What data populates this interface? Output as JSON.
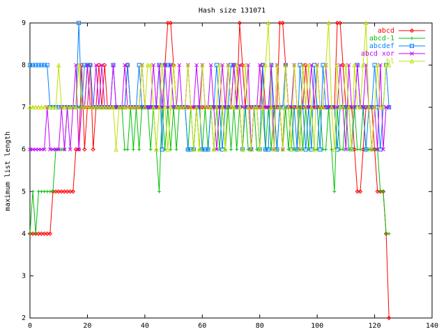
{
  "chart_data": {
    "type": "line",
    "title": "Hash size 131071",
    "xlabel": "",
    "ylabel": "maximum list length",
    "xlim": [
      0,
      140
    ],
    "ylim": [
      2,
      9
    ],
    "xticks": [
      0,
      20,
      40,
      60,
      80,
      100,
      120,
      140
    ],
    "yticks": [
      2,
      3,
      4,
      5,
      6,
      7,
      8,
      9
    ],
    "grid": false,
    "legend_position": "top-right",
    "series": [
      {
        "name": "abcd",
        "color": "#ff0000",
        "marker": "diamond",
        "x": [
          0,
          1,
          2,
          3,
          4,
          5,
          6,
          7,
          8,
          9,
          10,
          11,
          12,
          13,
          14,
          15,
          16,
          17,
          18,
          19,
          20,
          21,
          22,
          23,
          24,
          25,
          26,
          27,
          28,
          29,
          30,
          31,
          32,
          33,
          34,
          35,
          36,
          37,
          38,
          39,
          40,
          41,
          42,
          43,
          44,
          45,
          46,
          47,
          48,
          49,
          50,
          51,
          52,
          53,
          54,
          55,
          56,
          57,
          58,
          59,
          60,
          61,
          62,
          63,
          64,
          65,
          66,
          67,
          68,
          69,
          70,
          71,
          72,
          73,
          74,
          75,
          76,
          77,
          78,
          79,
          80,
          81,
          82,
          83,
          84,
          85,
          86,
          87,
          88,
          89,
          90,
          91,
          92,
          93,
          94,
          95,
          96,
          97,
          98,
          99,
          100,
          101,
          102,
          103,
          104,
          105,
          106,
          107,
          108,
          109,
          110,
          111,
          112,
          113,
          114,
          115,
          116,
          117,
          118,
          119,
          120,
          121,
          122,
          123,
          124,
          125
        ],
        "values": [
          4,
          4,
          4,
          4,
          4,
          4,
          4,
          4,
          5,
          5,
          5,
          5,
          5,
          5,
          5,
          5,
          6,
          6,
          8,
          6,
          7,
          8,
          6,
          7,
          8,
          7,
          8,
          7,
          7,
          7,
          7,
          7,
          7,
          7,
          8,
          7,
          7,
          7,
          7,
          7,
          7,
          7,
          7,
          7,
          7,
          7,
          7,
          8,
          9,
          9,
          8,
          7,
          7,
          7,
          7,
          7,
          7,
          7,
          7,
          7,
          7,
          7,
          7,
          7,
          7,
          7,
          7,
          7,
          7,
          7,
          7,
          8,
          7,
          9,
          8,
          7,
          7,
          7,
          7,
          7,
          7,
          8,
          7,
          7,
          7,
          7,
          7,
          9,
          9,
          8,
          7,
          7,
          7,
          7,
          7,
          7,
          8,
          7,
          7,
          7,
          7,
          7,
          7,
          7,
          7,
          7,
          7,
          9,
          9,
          8,
          7,
          7,
          7,
          6,
          5,
          5,
          6,
          7,
          7,
          7,
          6,
          5,
          5,
          5,
          4,
          2
        ]
      },
      {
        "name": "abcd-1",
        "color": "#00c000",
        "marker": "plus",
        "x": [
          0,
          1,
          2,
          3,
          4,
          5,
          6,
          7,
          8,
          9,
          10,
          11,
          12,
          13,
          14,
          15,
          16,
          17,
          18,
          19,
          20,
          21,
          22,
          23,
          24,
          25,
          26,
          27,
          28,
          29,
          30,
          31,
          32,
          33,
          34,
          35,
          36,
          37,
          38,
          39,
          40,
          41,
          42,
          43,
          44,
          45,
          46,
          47,
          48,
          49,
          50,
          51,
          52,
          53,
          54,
          55,
          56,
          57,
          58,
          59,
          60,
          61,
          62,
          63,
          64,
          65,
          66,
          67,
          68,
          69,
          70,
          71,
          72,
          73,
          74,
          75,
          76,
          77,
          78,
          79,
          80,
          81,
          82,
          83,
          84,
          85,
          86,
          87,
          88,
          89,
          90,
          91,
          92,
          93,
          94,
          95,
          96,
          97,
          98,
          99,
          100,
          101,
          102,
          103,
          104,
          105,
          106,
          107,
          108,
          109,
          110,
          111,
          112,
          113,
          114,
          115,
          116,
          117,
          118,
          119,
          120,
          121,
          122,
          123,
          124,
          125
        ],
        "values": [
          4,
          5,
          4,
          5,
          5,
          5,
          5,
          5,
          5,
          6,
          6,
          6,
          6,
          7,
          7,
          7,
          7,
          7,
          7,
          7,
          8,
          7,
          7,
          7,
          7,
          7,
          7,
          7,
          7,
          7,
          7,
          7,
          7,
          6,
          6,
          7,
          6,
          7,
          6,
          7,
          7,
          7,
          6,
          7,
          6,
          5,
          7,
          6,
          7,
          6,
          7,
          6,
          7,
          7,
          7,
          6,
          7,
          6,
          7,
          6,
          6,
          7,
          6,
          7,
          6,
          7,
          6,
          7,
          6,
          7,
          6,
          7,
          6,
          7,
          6,
          7,
          6,
          6,
          7,
          6,
          6,
          7,
          6,
          7,
          6,
          7,
          6,
          7,
          6,
          7,
          6,
          7,
          6,
          6,
          7,
          6,
          7,
          6,
          7,
          6,
          6,
          7,
          6,
          6,
          7,
          6,
          5,
          7,
          6,
          6,
          7,
          6,
          6,
          7,
          6,
          6,
          7,
          6,
          6,
          6,
          6,
          6,
          5,
          5,
          4,
          4
        ]
      },
      {
        "name": "abcdef",
        "color": "#0080ff",
        "marker": "square",
        "x": [
          0,
          1,
          2,
          3,
          4,
          5,
          6,
          7,
          8,
          9,
          10,
          11,
          12,
          13,
          14,
          15,
          16,
          17,
          18,
          19,
          20,
          21,
          22,
          23,
          24,
          25,
          26,
          27,
          28,
          29,
          30,
          31,
          32,
          33,
          34,
          35,
          36,
          37,
          38,
          39,
          40,
          41,
          42,
          43,
          44,
          45,
          46,
          47,
          48,
          49,
          50,
          51,
          52,
          53,
          54,
          55,
          56,
          57,
          58,
          59,
          60,
          61,
          62,
          63,
          64,
          65,
          66,
          67,
          68,
          69,
          70,
          71,
          72,
          73,
          74,
          75,
          76,
          77,
          78,
          79,
          80,
          81,
          82,
          83,
          84,
          85,
          86,
          87,
          88,
          89,
          90,
          91,
          92,
          93,
          94,
          95,
          96,
          97,
          98,
          99,
          100,
          101,
          102,
          103,
          104,
          105,
          106,
          107,
          108,
          109,
          110,
          111,
          112,
          113,
          114,
          115,
          116,
          117,
          118,
          119,
          120,
          121,
          122,
          123,
          124,
          125
        ],
        "values": [
          8,
          8,
          8,
          8,
          8,
          8,
          8,
          7,
          7,
          7,
          7,
          7,
          7,
          7,
          7,
          7,
          7,
          9,
          7,
          8,
          8,
          8,
          7,
          7,
          7,
          7,
          7,
          7,
          7,
          8,
          7,
          7,
          7,
          7,
          8,
          7,
          7,
          7,
          8,
          7,
          7,
          7,
          7,
          7,
          7,
          8,
          6,
          8,
          8,
          8,
          7,
          7,
          7,
          7,
          7,
          6,
          6,
          6,
          7,
          7,
          6,
          6,
          6,
          7,
          7,
          8,
          7,
          6,
          7,
          7,
          8,
          8,
          7,
          7,
          6,
          7,
          7,
          6,
          7,
          7,
          6,
          8,
          6,
          6,
          8,
          7,
          6,
          7,
          7,
          8,
          7,
          6,
          7,
          6,
          8,
          7,
          6,
          7,
          6,
          8,
          7,
          6,
          8,
          7,
          7,
          7,
          7,
          6,
          7,
          7,
          7,
          7,
          6,
          7,
          8,
          7,
          7,
          6,
          7,
          7,
          8,
          7,
          6,
          7,
          8,
          7
        ]
      },
      {
        "name": "abcd xor",
        "color": "#c000ff",
        "marker": "x",
        "x": [
          0,
          1,
          2,
          3,
          4,
          5,
          6,
          7,
          8,
          9,
          10,
          11,
          12,
          13,
          14,
          15,
          16,
          17,
          18,
          19,
          20,
          21,
          22,
          23,
          24,
          25,
          26,
          27,
          28,
          29,
          30,
          31,
          32,
          33,
          34,
          35,
          36,
          37,
          38,
          39,
          40,
          41,
          42,
          43,
          44,
          45,
          46,
          47,
          48,
          49,
          50,
          51,
          52,
          53,
          54,
          55,
          56,
          57,
          58,
          59,
          60,
          61,
          62,
          63,
          64,
          65,
          66,
          67,
          68,
          69,
          70,
          71,
          72,
          73,
          74,
          75,
          76,
          77,
          78,
          79,
          80,
          81,
          82,
          83,
          84,
          85,
          86,
          87,
          88,
          89,
          90,
          91,
          92,
          93,
          94,
          95,
          96,
          97,
          98,
          99,
          100,
          101,
          102,
          103,
          104,
          105,
          106,
          107,
          108,
          109,
          110,
          111,
          112,
          113,
          114,
          115,
          116,
          117,
          118,
          119,
          120,
          121,
          122,
          123,
          124,
          125
        ],
        "values": [
          6,
          6,
          6,
          6,
          6,
          6,
          7,
          6,
          6,
          6,
          6,
          7,
          6,
          7,
          6,
          7,
          8,
          6,
          7,
          7,
          8,
          7,
          7,
          8,
          7,
          8,
          7,
          7,
          7,
          8,
          7,
          7,
          7,
          8,
          7,
          7,
          7,
          7,
          7,
          8,
          7,
          7,
          7,
          8,
          7,
          8,
          7,
          8,
          7,
          8,
          7,
          7,
          8,
          7,
          7,
          8,
          7,
          7,
          8,
          7,
          8,
          7,
          7,
          8,
          7,
          6,
          7,
          8,
          7,
          8,
          7,
          8,
          7,
          8,
          7,
          7,
          8,
          6,
          7,
          7,
          8,
          7,
          7,
          7,
          8,
          6,
          8,
          7,
          6,
          8,
          7,
          7,
          8,
          7,
          6,
          8,
          7,
          7,
          8,
          7,
          8,
          7,
          7,
          8,
          7,
          7,
          7,
          7,
          8,
          7,
          6,
          8,
          7,
          7,
          8,
          7,
          7,
          8,
          7,
          6,
          7,
          6,
          8,
          6,
          7,
          7
        ]
      },
      {
        "name": "bl",
        "color": "#c0e000",
        "marker": "triangle",
        "x": [
          0,
          1,
          2,
          3,
          4,
          5,
          6,
          7,
          8,
          9,
          10,
          11,
          12,
          13,
          14,
          15,
          16,
          17,
          18,
          19,
          20,
          21,
          22,
          23,
          24,
          25,
          26,
          27,
          28,
          29,
          30,
          31,
          32,
          33,
          34,
          35,
          36,
          37,
          38,
          39,
          40,
          41,
          42,
          43,
          44,
          45,
          46,
          47,
          48,
          49,
          50,
          51,
          52,
          53,
          54,
          55,
          56,
          57,
          58,
          59,
          60,
          61,
          62,
          63,
          64,
          65,
          66,
          67,
          68,
          69,
          70,
          71,
          72,
          73,
          74,
          75,
          76,
          77,
          78,
          79,
          80,
          81,
          82,
          83,
          84,
          85,
          86,
          87,
          88,
          89,
          90,
          91,
          92,
          93,
          94,
          95,
          96,
          97,
          98,
          99,
          100,
          101,
          102,
          103,
          104,
          105,
          106,
          107,
          108,
          109,
          110,
          111,
          112,
          113,
          114,
          115,
          116,
          117,
          118,
          119,
          120,
          121,
          122,
          123,
          124,
          125
        ],
        "values": [
          7,
          7,
          7,
          7,
          7,
          7,
          7,
          7,
          7,
          7,
          8,
          7,
          7,
          7,
          7,
          7,
          7,
          8,
          7,
          7,
          7,
          7,
          7,
          7,
          7,
          7,
          7,
          7,
          7,
          7,
          6,
          7,
          7,
          7,
          7,
          7,
          7,
          7,
          7,
          8,
          7,
          8,
          8,
          7,
          6,
          7,
          8,
          7,
          6,
          7,
          8,
          7,
          7,
          7,
          7,
          8,
          7,
          6,
          7,
          6,
          8,
          7,
          7,
          7,
          6,
          7,
          8,
          7,
          6,
          8,
          7,
          7,
          8,
          7,
          6,
          8,
          7,
          6,
          7,
          7,
          6,
          7,
          8,
          9,
          7,
          6,
          8,
          7,
          6,
          8,
          7,
          6,
          8,
          7,
          6,
          8,
          7,
          8,
          7,
          6,
          8,
          7,
          7,
          8,
          9,
          7,
          6,
          8,
          7,
          7,
          8,
          7,
          6,
          8,
          7,
          7,
          8,
          9,
          7,
          6,
          7,
          8,
          7,
          7,
          8,
          8
        ]
      }
    ]
  }
}
